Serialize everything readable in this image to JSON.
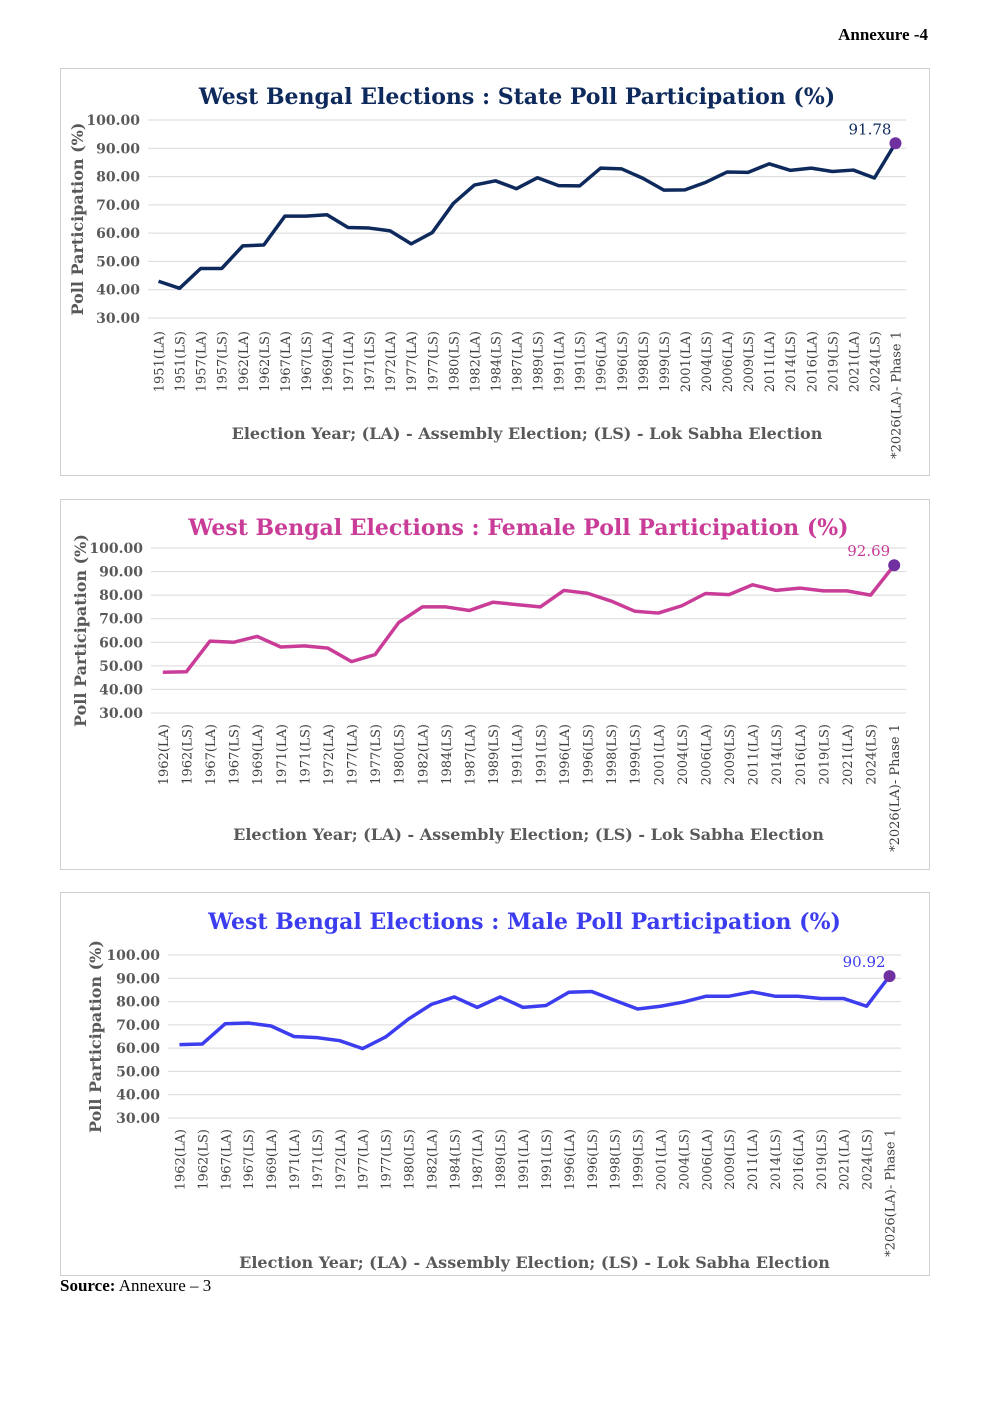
{
  "header": {
    "annexure": "Annexure -4"
  },
  "footer": {
    "source_label": "Source:",
    "source_value": "Annexure – 3"
  },
  "chart_data": [
    {
      "type": "line",
      "title": "West Bengal Elections : State Poll Participation (%)",
      "xlabel": "Election Year; (LA) - Assembly Election; (LS) - Lok Sabha Election",
      "ylabel": "Poll Participation (%)",
      "ylim": [
        30,
        100
      ],
      "yticks": [
        "30.00",
        "40.00",
        "50.00",
        "60.00",
        "70.00",
        "80.00",
        "90.00",
        "100.00"
      ],
      "color": "#0e2a5c",
      "title_color": "#0e2a5c",
      "marker_color": "#7030a0",
      "last_label": "91.78",
      "categories": [
        "1951(LA)",
        "1951(LS)",
        "1957(LA)",
        "1957(LS)",
        "1962(LA)",
        "1962(LS)",
        "1967(LA)",
        "1967(LS)",
        "1969(LA)",
        "1971(LA)",
        "1971(LS)",
        "1972(LA)",
        "1977(LA)",
        "1977(LS)",
        "1980(LS)",
        "1982(LA)",
        "1984(LS)",
        "1987(LA)",
        "1989(LS)",
        "1991(LA)",
        "1991(LS)",
        "1996(LA)",
        "1996(LS)",
        "1998(LS)",
        "1999(LS)",
        "2001(LA)",
        "2004(LS)",
        "2006(LA)",
        "2009(LS)",
        "2011(LA)",
        "2014(LS)",
        "2016(LA)",
        "2019(LS)",
        "2021(LA)",
        "2024(LS)",
        "*2026(LA)- Phase 1"
      ],
      "values": [
        43,
        40.5,
        47.5,
        47.5,
        55.5,
        55.8,
        66,
        66,
        66.5,
        62,
        61.8,
        60.8,
        56.2,
        60.2,
        70.5,
        77,
        78.5,
        75.7,
        79.6,
        76.8,
        76.7,
        83,
        82.7,
        79.4,
        75.2,
        75.3,
        78,
        81.6,
        81.5,
        84.5,
        82.2,
        83,
        81.8,
        82.3,
        79.5,
        91.78
      ]
    },
    {
      "type": "line",
      "title": "West Bengal Elections : Female Poll Participation (%)",
      "xlabel": "Election Year; (LA) - Assembly Election; (LS) - Lok Sabha Election",
      "ylabel": "Poll Participation (%)",
      "ylim": [
        30,
        100
      ],
      "yticks": [
        "30.00",
        "40.00",
        "50.00",
        "60.00",
        "70.00",
        "80.00",
        "90.00",
        "100.00"
      ],
      "color": "#c93d98",
      "title_color": "#c93d98",
      "marker_color": "#7030a0",
      "last_label": "92.69",
      "categories": [
        "1962(LA)",
        "1962(LS)",
        "1967(LA)",
        "1967(LS)",
        "1969(LA)",
        "1971(LA)",
        "1971(LS)",
        "1972(LA)",
        "1977(LA)",
        "1977(LS)",
        "1980(LS)",
        "1982(LA)",
        "1984(LS)",
        "1987(LA)",
        "1989(LS)",
        "1991(LA)",
        "1991(LS)",
        "1996(LA)",
        "1996(LS)",
        "1998(LS)",
        "1999(LS)",
        "2001(LA)",
        "2004(LS)",
        "2006(LA)",
        "2009(LS)",
        "2011(LA)",
        "2014(LS)",
        "2016(LA)",
        "2019(LS)",
        "2021(LA)",
        "2024(LS)",
        "*2026(LA)- Phase 1"
      ],
      "values": [
        47.3,
        47.5,
        60.5,
        60,
        62.5,
        58,
        58.5,
        57.5,
        51.8,
        54.8,
        68.4,
        75,
        75,
        73.5,
        77,
        76,
        75,
        82,
        80.8,
        77.5,
        73.2,
        72.4,
        75.5,
        80.7,
        80.2,
        84.4,
        82,
        83,
        81.8,
        81.8,
        80,
        92.69
      ]
    },
    {
      "type": "line",
      "title": "West Bengal Elections : Male Poll Participation (%)",
      "xlabel": "Election Year; (LA) - Assembly Election; (LS) - Lok Sabha Election",
      "ylabel": "Poll Participation (%)",
      "ylim": [
        30,
        100
      ],
      "yticks": [
        "30.00",
        "40.00",
        "50.00",
        "60.00",
        "70.00",
        "80.00",
        "90.00",
        "100.00"
      ],
      "color": "#3d3df0",
      "title_color": "#3d3df0",
      "marker_color": "#7030a0",
      "last_label": "90.92",
      "categories": [
        "1962(LA)",
        "1962(LS)",
        "1967(LA)",
        "1967(LS)",
        "1969(LA)",
        "1971(LA)",
        "1971(LS)",
        "1972(LA)",
        "1977(LA)",
        "1977(LS)",
        "1980(LS)",
        "1982(LA)",
        "1984(LS)",
        "1987(LA)",
        "1989(LS)",
        "1991(LA)",
        "1991(LS)",
        "1996(LA)",
        "1996(LS)",
        "1998(LS)",
        "1999(LS)",
        "2001(LA)",
        "2004(LS)",
        "2006(LA)",
        "2009(LS)",
        "2011(LA)",
        "2014(LS)",
        "2016(LA)",
        "2019(LS)",
        "2021(LA)",
        "2024(LS)",
        "*2026(LA)- Phase 1"
      ],
      "values": [
        61.5,
        61.8,
        70.5,
        70.8,
        69.5,
        65,
        64.5,
        63.2,
        59.8,
        64.8,
        72.5,
        78.8,
        82,
        77.5,
        82,
        77.5,
        78.3,
        84,
        84.3,
        80.5,
        76.8,
        78,
        79.8,
        82.3,
        82.3,
        84.2,
        82.3,
        82.3,
        81.3,
        81.3,
        78,
        90.92
      ]
    }
  ]
}
